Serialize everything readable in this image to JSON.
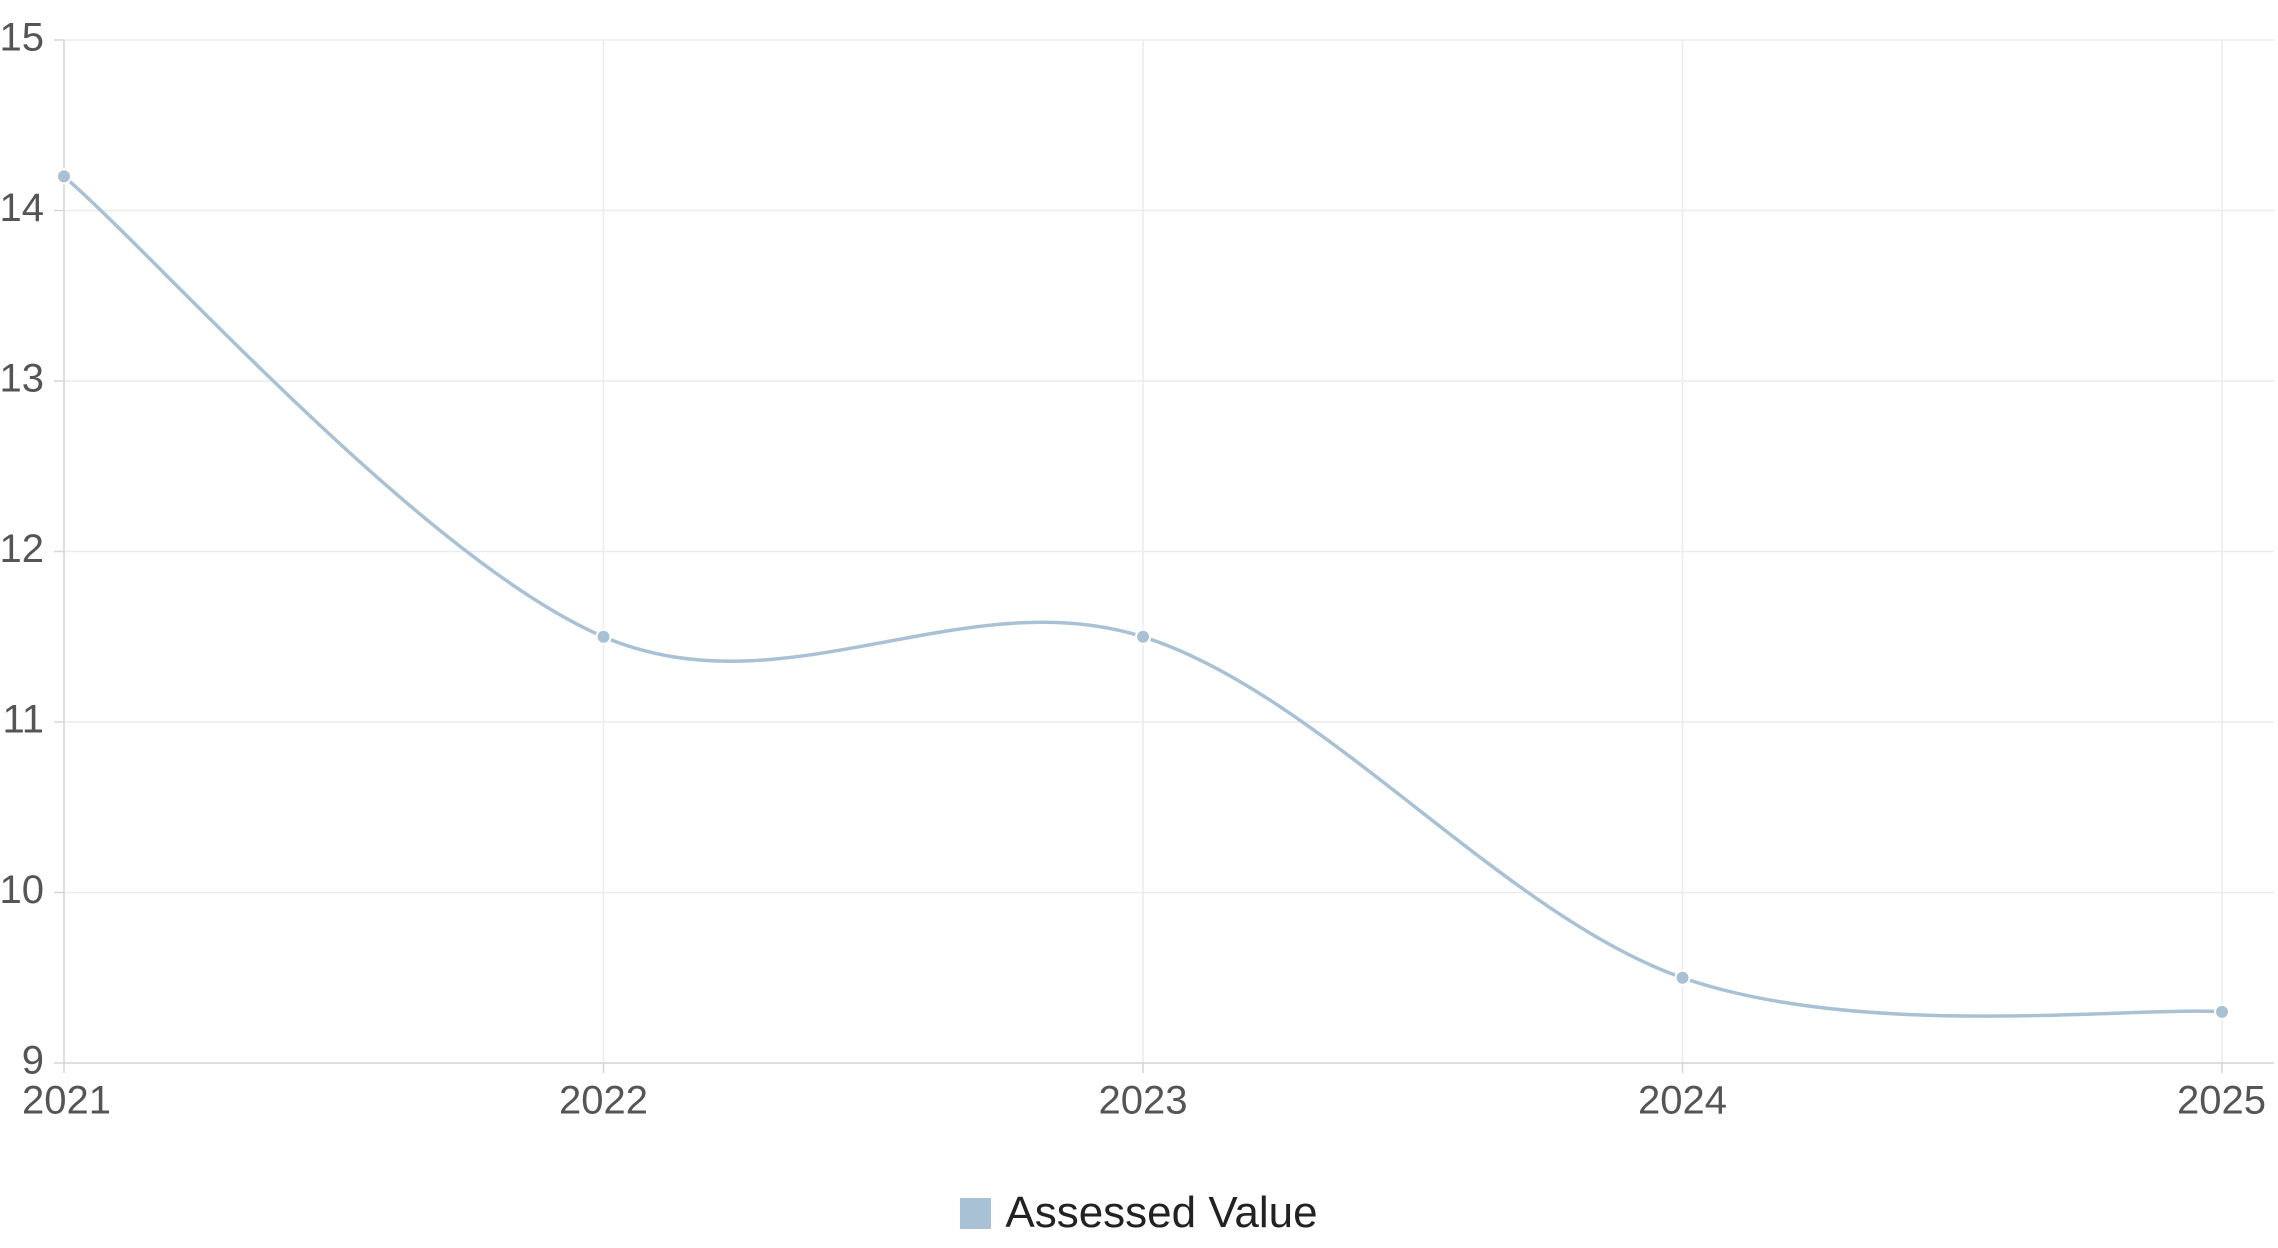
{
  "chart_data": {
    "type": "line",
    "title": "",
    "xlabel": "",
    "ylabel": "",
    "x": [
      "2021",
      "2022",
      "2023",
      "2024",
      "2025"
    ],
    "series": [
      {
        "name": "Assessed Value",
        "values": [
          14.2,
          11.5,
          11.5,
          9.5,
          9.3
        ],
        "color": "#a8c1d4"
      }
    ],
    "ylim": [
      9,
      15
    ],
    "yticks": [
      "9",
      "10",
      "11",
      "12",
      "13",
      "14",
      "15"
    ],
    "grid": true,
    "smooth": true,
    "markers": true,
    "legend": "bottom-center"
  },
  "legend": {
    "label": "Assessed Value",
    "color": "#a8c1d4"
  }
}
